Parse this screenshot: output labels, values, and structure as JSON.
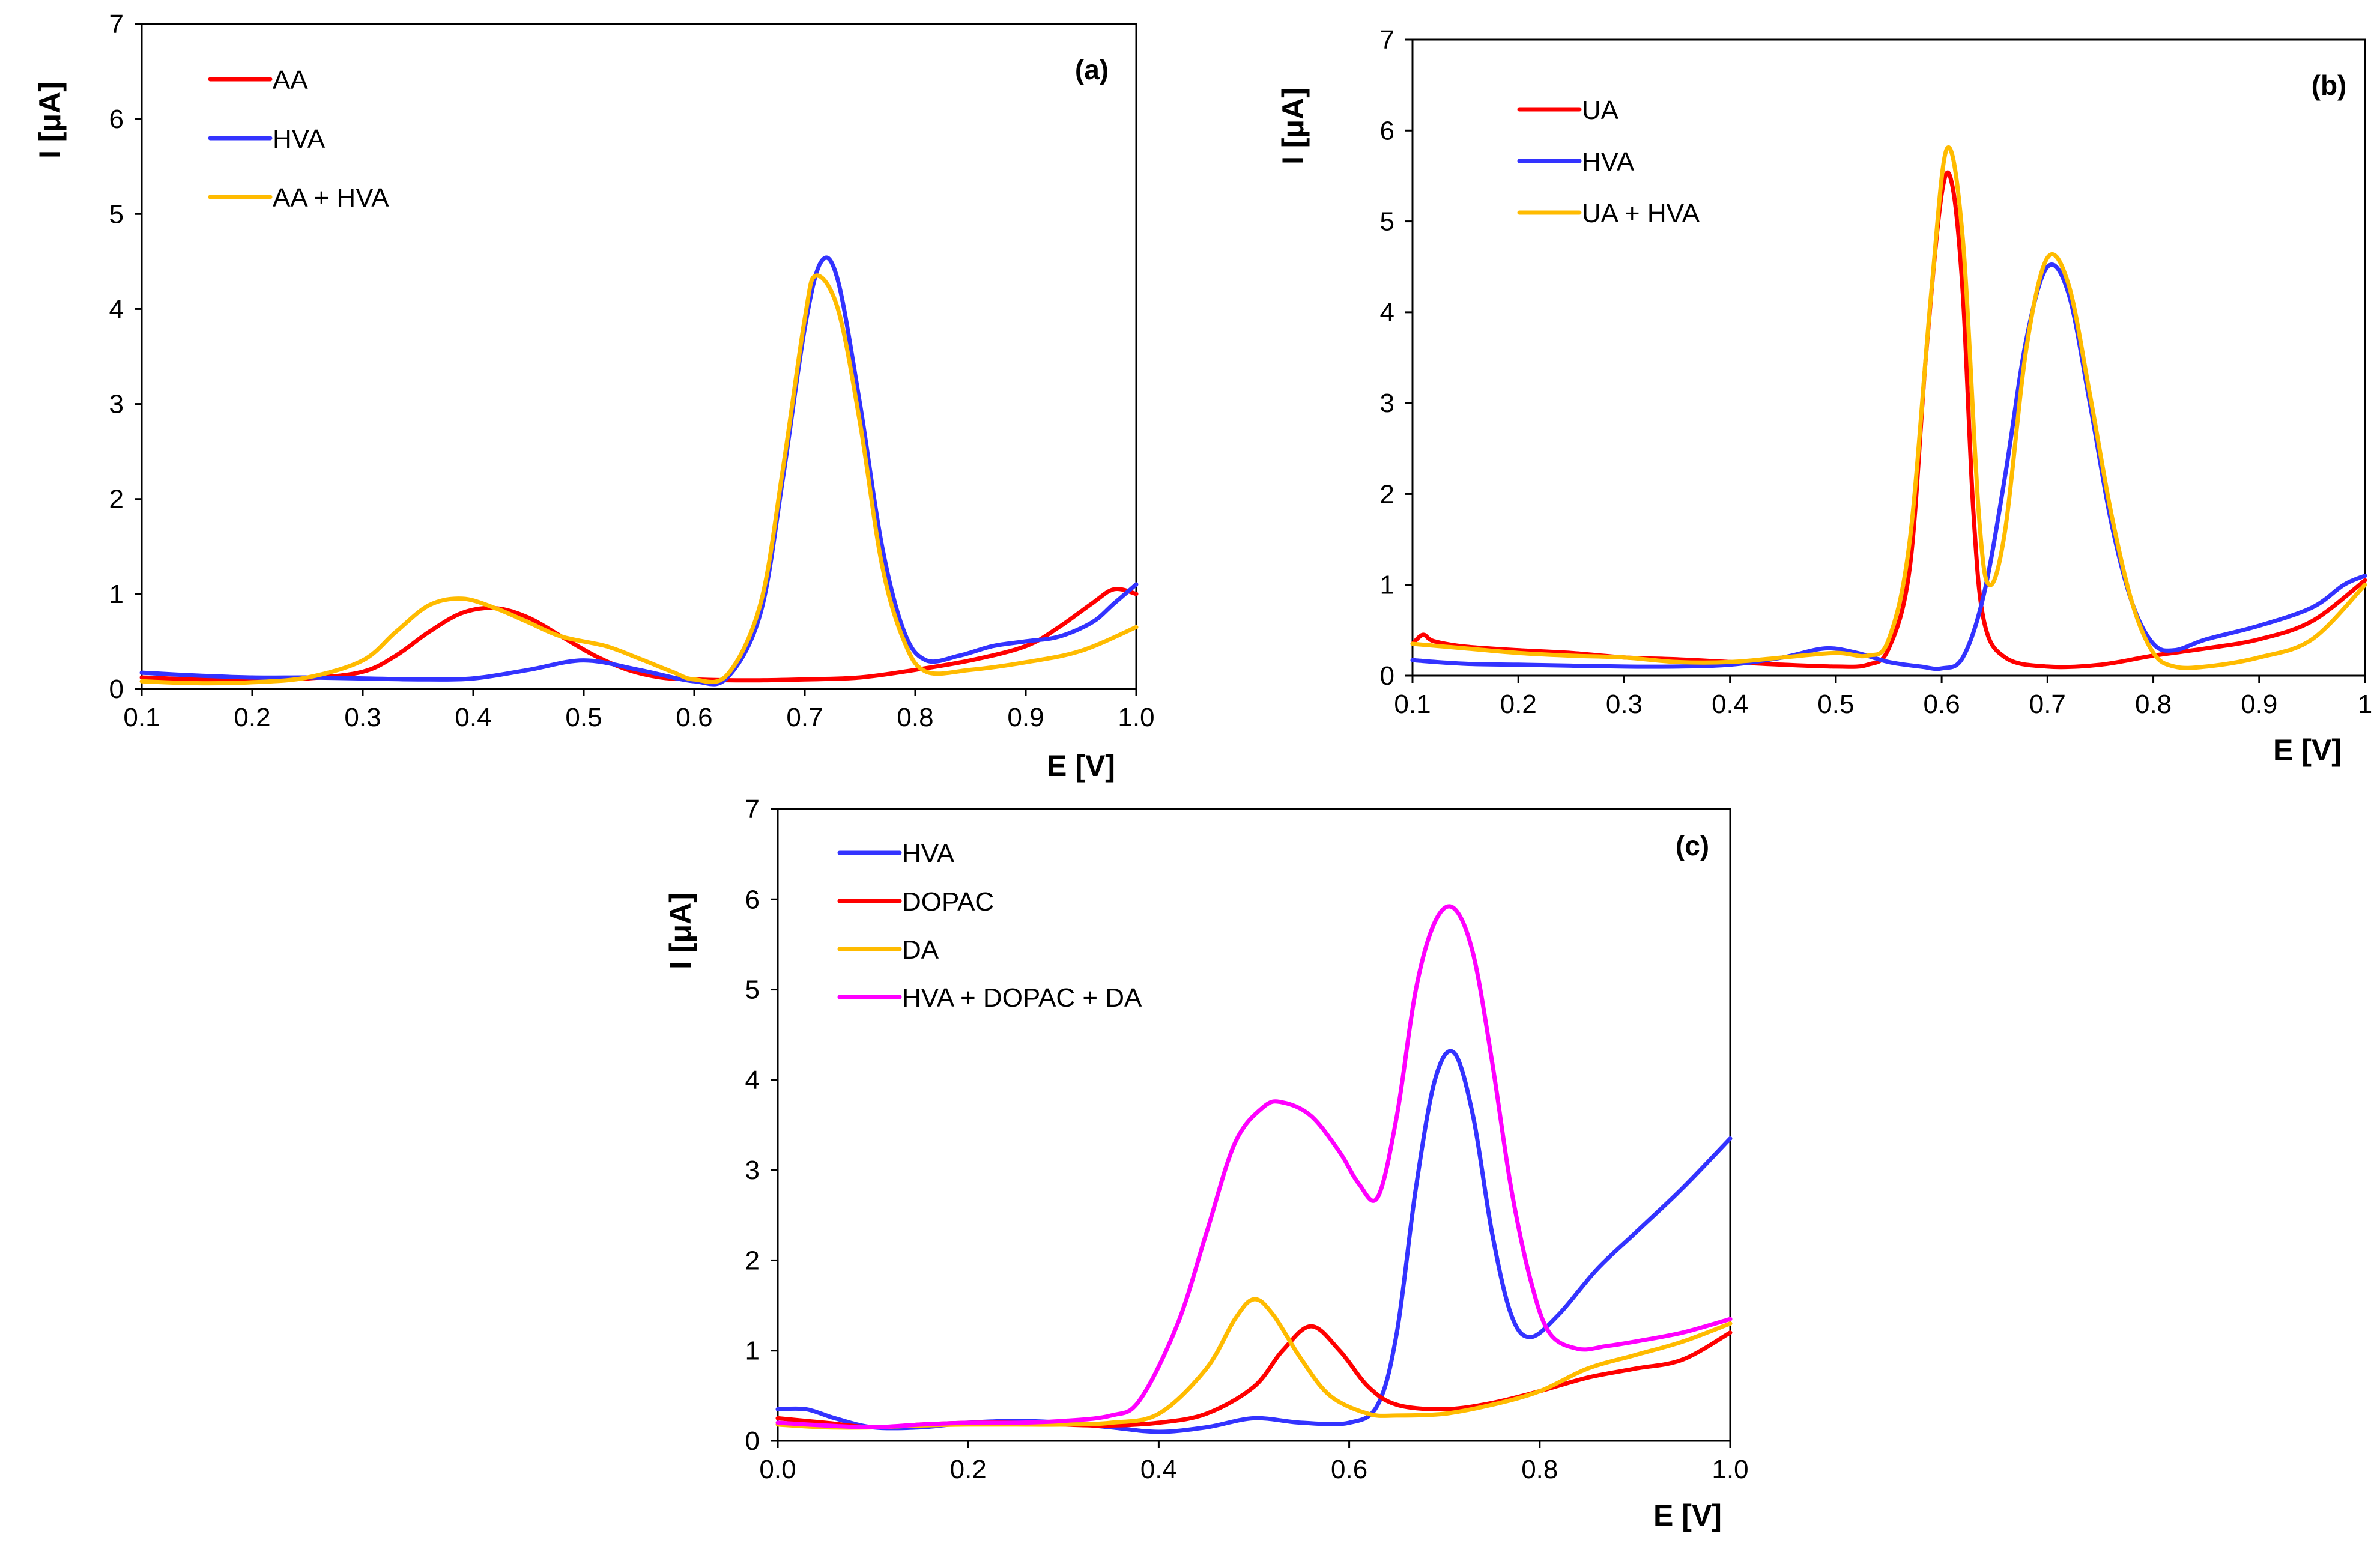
{
  "chart_data": [
    {
      "type": "line",
      "panel_label": "(a)",
      "xlabel": "E [V]",
      "ylabel": "I [μA]",
      "xlim": [
        0.1,
        1.0
      ],
      "ylim": [
        0,
        7
      ],
      "xticks": [
        "0.1",
        "0.2",
        "0.3",
        "0.4",
        "0.5",
        "0.6",
        "0.7",
        "0.8",
        "0.9",
        "1.0"
      ],
      "yticks": [
        "0",
        "1",
        "2",
        "3",
        "4",
        "5",
        "6",
        "7"
      ],
      "legend_position": "top-left",
      "series": [
        {
          "name": "AA",
          "color": "#ff0000",
          "x": [
            0.1,
            0.15,
            0.2,
            0.25,
            0.3,
            0.33,
            0.36,
            0.39,
            0.42,
            0.45,
            0.48,
            0.51,
            0.54,
            0.57,
            0.6,
            0.65,
            0.7,
            0.75,
            0.8,
            0.85,
            0.9,
            0.93,
            0.96,
            0.98,
            1.0
          ],
          "y": [
            0.12,
            0.1,
            0.1,
            0.11,
            0.18,
            0.35,
            0.6,
            0.8,
            0.85,
            0.75,
            0.55,
            0.35,
            0.2,
            0.12,
            0.1,
            0.09,
            0.1,
            0.12,
            0.2,
            0.3,
            0.45,
            0.65,
            0.9,
            1.05,
            1.0
          ]
        },
        {
          "name": "HVA",
          "color": "#3333ff",
          "x": [
            0.1,
            0.15,
            0.2,
            0.25,
            0.3,
            0.35,
            0.4,
            0.45,
            0.5,
            0.55,
            0.6,
            0.63,
            0.66,
            0.68,
            0.7,
            0.715,
            0.73,
            0.75,
            0.77,
            0.79,
            0.81,
            0.84,
            0.87,
            0.9,
            0.93,
            0.96,
            0.98,
            1.0
          ],
          "y": [
            0.17,
            0.14,
            0.12,
            0.12,
            0.11,
            0.1,
            0.11,
            0.2,
            0.3,
            0.2,
            0.08,
            0.12,
            0.8,
            2.2,
            3.8,
            4.5,
            4.3,
            3.0,
            1.5,
            0.6,
            0.3,
            0.35,
            0.45,
            0.5,
            0.55,
            0.7,
            0.9,
            1.1
          ]
        },
        {
          "name": "AA + HVA",
          "color": "#ffbb00",
          "x": [
            0.1,
            0.15,
            0.2,
            0.25,
            0.3,
            0.33,
            0.36,
            0.39,
            0.42,
            0.45,
            0.48,
            0.52,
            0.55,
            0.58,
            0.6,
            0.63,
            0.66,
            0.68,
            0.7,
            0.71,
            0.73,
            0.75,
            0.77,
            0.79,
            0.81,
            0.85,
            0.9,
            0.95,
            1.0
          ],
          "y": [
            0.08,
            0.06,
            0.07,
            0.12,
            0.3,
            0.6,
            0.88,
            0.95,
            0.85,
            0.7,
            0.55,
            0.45,
            0.32,
            0.18,
            0.1,
            0.15,
            0.9,
            2.3,
            3.9,
            4.35,
            4.0,
            2.8,
            1.3,
            0.5,
            0.18,
            0.2,
            0.28,
            0.4,
            0.65
          ]
        }
      ]
    },
    {
      "type": "line",
      "panel_label": "(b)",
      "xlabel": "E [V]",
      "ylabel": "I [μA]",
      "xlim": [
        0.1,
        1.0
      ],
      "ylim": [
        0,
        7
      ],
      "xticks": [
        "0.1",
        "0.2",
        "0.3",
        "0.4",
        "0.5",
        "0.6",
        "0.7",
        "0.8",
        "0.9",
        "1"
      ],
      "yticks": [
        "0",
        "1",
        "2",
        "3",
        "4",
        "5",
        "6",
        "7"
      ],
      "legend_position": "top-left",
      "series": [
        {
          "name": "UA",
          "color": "#ff0000",
          "x": [
            0.1,
            0.11,
            0.12,
            0.15,
            0.2,
            0.25,
            0.3,
            0.35,
            0.4,
            0.45,
            0.5,
            0.53,
            0.55,
            0.57,
            0.585,
            0.6,
            0.61,
            0.62,
            0.63,
            0.64,
            0.66,
            0.7,
            0.75,
            0.8,
            0.85,
            0.9,
            0.95,
            1.0
          ],
          "y": [
            0.35,
            0.45,
            0.38,
            0.32,
            0.28,
            0.25,
            0.2,
            0.18,
            0.15,
            0.12,
            0.1,
            0.12,
            0.3,
            1.2,
            3.5,
            5.3,
            5.4,
            4.2,
            1.8,
            0.6,
            0.2,
            0.1,
            0.12,
            0.22,
            0.3,
            0.4,
            0.6,
            1.05
          ]
        },
        {
          "name": "HVA",
          "color": "#3333ff",
          "x": [
            0.1,
            0.15,
            0.2,
            0.25,
            0.3,
            0.35,
            0.4,
            0.45,
            0.49,
            0.52,
            0.55,
            0.58,
            0.6,
            0.62,
            0.64,
            0.66,
            0.68,
            0.7,
            0.72,
            0.74,
            0.76,
            0.78,
            0.8,
            0.82,
            0.85,
            0.9,
            0.95,
            0.98,
            1.0
          ],
          "y": [
            0.17,
            0.13,
            0.12,
            0.11,
            0.1,
            0.1,
            0.12,
            0.2,
            0.3,
            0.25,
            0.15,
            0.1,
            0.08,
            0.2,
            0.9,
            2.2,
            3.7,
            4.5,
            4.2,
            3.0,
            1.7,
            0.8,
            0.35,
            0.28,
            0.4,
            0.55,
            0.75,
            1.0,
            1.1
          ]
        },
        {
          "name": "UA + HVA",
          "color": "#ffbb00",
          "x": [
            0.1,
            0.15,
            0.2,
            0.25,
            0.3,
            0.35,
            0.4,
            0.45,
            0.5,
            0.53,
            0.55,
            0.57,
            0.59,
            0.605,
            0.62,
            0.635,
            0.645,
            0.66,
            0.68,
            0.7,
            0.72,
            0.74,
            0.76,
            0.78,
            0.8,
            0.82,
            0.85,
            0.9,
            0.95,
            1.0
          ],
          "y": [
            0.35,
            0.3,
            0.25,
            0.22,
            0.2,
            0.15,
            0.15,
            0.2,
            0.25,
            0.22,
            0.4,
            1.5,
            4.2,
            5.8,
            4.8,
            1.8,
            1.0,
            1.6,
            3.6,
            4.6,
            4.3,
            3.1,
            1.8,
            0.8,
            0.25,
            0.1,
            0.1,
            0.2,
            0.4,
            1.0
          ]
        }
      ]
    },
    {
      "type": "line",
      "panel_label": "(c)",
      "xlabel": "E [V]",
      "ylabel": "I [μA]",
      "xlim": [
        0.0,
        1.0
      ],
      "ylim": [
        0,
        7
      ],
      "xticks": [
        "0.0",
        "0.2",
        "0.4",
        "0.6",
        "0.8",
        "1.0"
      ],
      "yticks": [
        "0",
        "1",
        "2",
        "3",
        "4",
        "5",
        "6",
        "7"
      ],
      "legend_position": "top-left",
      "series": [
        {
          "name": "HVA",
          "color": "#3333ff",
          "x": [
            0.0,
            0.03,
            0.06,
            0.1,
            0.15,
            0.2,
            0.25,
            0.3,
            0.35,
            0.4,
            0.45,
            0.5,
            0.55,
            0.6,
            0.63,
            0.65,
            0.67,
            0.69,
            0.71,
            0.73,
            0.75,
            0.77,
            0.79,
            0.82,
            0.86,
            0.9,
            0.95,
            1.0
          ],
          "y": [
            0.35,
            0.35,
            0.25,
            0.15,
            0.15,
            0.2,
            0.22,
            0.2,
            0.15,
            0.1,
            0.15,
            0.25,
            0.2,
            0.2,
            0.4,
            1.2,
            2.8,
            4.0,
            4.3,
            3.6,
            2.3,
            1.4,
            1.15,
            1.4,
            1.9,
            2.3,
            2.8,
            3.35
          ]
        },
        {
          "name": "DOPAC",
          "color": "#ff0000",
          "x": [
            0.0,
            0.05,
            0.1,
            0.15,
            0.2,
            0.25,
            0.3,
            0.35,
            0.4,
            0.45,
            0.5,
            0.53,
            0.56,
            0.59,
            0.62,
            0.65,
            0.7,
            0.75,
            0.8,
            0.85,
            0.9,
            0.95,
            1.0
          ],
          "y": [
            0.25,
            0.2,
            0.15,
            0.18,
            0.2,
            0.2,
            0.18,
            0.17,
            0.2,
            0.3,
            0.6,
            1.0,
            1.27,
            1.0,
            0.6,
            0.4,
            0.35,
            0.42,
            0.55,
            0.7,
            0.8,
            0.9,
            1.2
          ]
        },
        {
          "name": "DA",
          "color": "#ffbb00",
          "x": [
            0.0,
            0.05,
            0.1,
            0.15,
            0.2,
            0.25,
            0.3,
            0.35,
            0.4,
            0.45,
            0.48,
            0.5,
            0.52,
            0.55,
            0.58,
            0.62,
            0.65,
            0.7,
            0.75,
            0.8,
            0.85,
            0.9,
            0.95,
            1.0
          ],
          "y": [
            0.18,
            0.15,
            0.15,
            0.17,
            0.18,
            0.18,
            0.18,
            0.2,
            0.3,
            0.8,
            1.35,
            1.57,
            1.4,
            0.9,
            0.5,
            0.3,
            0.28,
            0.3,
            0.4,
            0.55,
            0.8,
            0.95,
            1.1,
            1.3
          ]
        },
        {
          "name": "HVA + DOPAC + DA",
          "color": "#ff00ff",
          "x": [
            0.0,
            0.05,
            0.1,
            0.15,
            0.2,
            0.25,
            0.3,
            0.35,
            0.38,
            0.42,
            0.45,
            0.48,
            0.51,
            0.53,
            0.56,
            0.59,
            0.61,
            0.63,
            0.65,
            0.67,
            0.69,
            0.71,
            0.73,
            0.75,
            0.77,
            0.79,
            0.81,
            0.84,
            0.87,
            0.9,
            0.95,
            1.0
          ],
          "y": [
            0.2,
            0.17,
            0.15,
            0.18,
            0.2,
            0.2,
            0.22,
            0.28,
            0.45,
            1.3,
            2.3,
            3.3,
            3.7,
            3.75,
            3.6,
            3.2,
            2.85,
            2.7,
            3.6,
            5.0,
            5.75,
            5.9,
            5.4,
            4.2,
            2.8,
            1.8,
            1.2,
            1.02,
            1.05,
            1.1,
            1.2,
            1.35
          ]
        }
      ]
    }
  ]
}
